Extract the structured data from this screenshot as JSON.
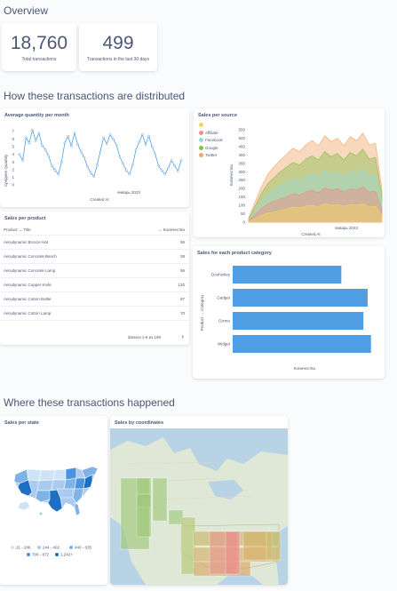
{
  "page": {
    "overview_title": "Overview",
    "distribution_title": "How these transactions are distributed",
    "where_title": "Where these transactions happened"
  },
  "scalars": [
    {
      "value": "18,760",
      "label": "Total transactions"
    },
    {
      "value": "499",
      "label": "Transactions in the last 30 days"
    }
  ],
  "avg_quantity": {
    "title": "Average quantity per month",
    "ylabel": "Среднее Quantity",
    "xlabel": "Created At",
    "tick_year": "январь 2023",
    "yticks": [
      "7",
      "6",
      "5",
      "4",
      "3",
      "2",
      "1",
      "0"
    ],
    "ylim": [
      0,
      7
    ],
    "values": [
      4,
      3.2,
      6.2,
      5.5,
      7.2,
      5.8,
      6.8,
      5.2,
      4.6,
      3.8,
      2.5,
      1.9,
      1.4,
      3,
      5.5,
      6.4,
      5.1,
      6.8,
      5.3,
      4.4,
      3.6,
      2.4,
      1.6,
      1.1,
      2.6,
      4.4,
      6.2,
      5.4,
      6.6,
      6.0,
      5.2,
      3.7,
      2.8,
      1.9,
      1.4,
      2.6,
      4.6,
      5.6,
      6.6,
      5.3,
      6.4,
      5.0,
      4.0,
      2.5,
      1.9,
      1.4,
      2.2,
      3.2,
      2.5,
      1.8,
      3.2
    ]
  },
  "sales_per_source": {
    "title": "Sales per source",
    "ylabel": "Количество",
    "xlabel": "Created At",
    "tick_year": "январь 2023",
    "yticks": [
      "550",
      "500",
      "450",
      "400",
      "350",
      "300",
      "250",
      "200",
      "150",
      "100",
      "50",
      "0"
    ],
    "ylim": [
      0,
      550
    ],
    "legend": [
      {
        "name": "",
        "color": "#f9d45c"
      },
      {
        "name": "Affiliate",
        "color": "#ef8c8c"
      },
      {
        "name": "Facebook",
        "color": "#98d9d9"
      },
      {
        "name": "Google",
        "color": "#88bf4d"
      },
      {
        "name": "Twitter",
        "color": "#f2a86f"
      }
    ],
    "series_cumulative": [
      [
        5,
        20,
        40,
        55,
        60,
        70,
        80,
        90,
        85,
        95,
        100,
        90,
        110,
        100,
        105,
        95,
        105,
        100,
        110,
        90,
        95,
        40
      ],
      [
        10,
        45,
        80,
        110,
        125,
        140,
        150,
        170,
        160,
        180,
        190,
        175,
        205,
        190,
        200,
        180,
        200,
        190,
        210,
        180,
        185,
        80
      ],
      [
        15,
        70,
        125,
        170,
        195,
        220,
        240,
        260,
        250,
        275,
        290,
        270,
        310,
        285,
        300,
        270,
        305,
        290,
        320,
        275,
        285,
        120
      ],
      [
        20,
        95,
        170,
        230,
        265,
        300,
        330,
        355,
        340,
        375,
        395,
        370,
        420,
        390,
        410,
        370,
        415,
        395,
        435,
        375,
        385,
        160
      ],
      [
        25,
        120,
        210,
        285,
        330,
        370,
        405,
        440,
        420,
        460,
        485,
        455,
        515,
        480,
        500,
        455,
        510,
        485,
        530,
        460,
        470,
        195
      ]
    ]
  },
  "sales_per_product": {
    "title": "Sales per product",
    "col_product": "Product → Title",
    "col_qty": "→ Количество",
    "rows": [
      {
        "title": "Aerodynamic Bronze Hat",
        "qty": "96"
      },
      {
        "title": "Aerodynamic Concrete Bench",
        "qty": "38"
      },
      {
        "title": "Aerodynamic Concrete Lamp",
        "qty": "96"
      },
      {
        "title": "Aerodynamic Copper Knife",
        "qty": "120"
      },
      {
        "title": "Aerodynamic Cotton Bottle",
        "qty": "87"
      },
      {
        "title": "Aerodynamic Cotton Lamp",
        "qty": "70"
      }
    ],
    "pager": "Записи 1-6 из 199"
  },
  "sales_category": {
    "title": "Sales for each product category",
    "ylabel": "Product → Category",
    "xlabel": "Количество",
    "categories": [
      "Doohickey",
      "Gadget",
      "Gizmo",
      "Widget"
    ],
    "values": [
      3976,
      4939,
      4784,
      5061
    ],
    "xmax": 5200,
    "color": "#509ee3"
  },
  "sales_state": {
    "title": "Sales per state",
    "legend": [
      {
        "label": "21 - 206",
        "color": "#cfe3f7"
      },
      {
        "label": "244 - 402",
        "color": "#a8cbef"
      },
      {
        "label": "440 - 635",
        "color": "#7fb2e6"
      },
      {
        "label": "706 - 872",
        "color": "#4d93dc"
      },
      {
        "label": "1,242+",
        "color": "#1d6fc4"
      }
    ]
  },
  "sales_coords": {
    "title": "Sales by coordinates"
  }
}
